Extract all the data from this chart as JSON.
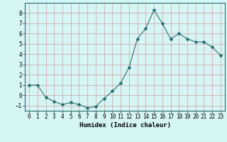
{
  "x": [
    0,
    1,
    2,
    3,
    4,
    5,
    6,
    7,
    8,
    9,
    10,
    11,
    12,
    13,
    14,
    15,
    16,
    17,
    18,
    19,
    20,
    21,
    22,
    23
  ],
  "y": [
    1.0,
    1.0,
    -0.2,
    -0.6,
    -0.9,
    -0.7,
    -0.9,
    -1.2,
    -1.1,
    -0.3,
    0.4,
    1.2,
    2.7,
    5.5,
    6.5,
    8.3,
    7.0,
    5.5,
    6.0,
    5.5,
    5.2,
    5.2,
    4.7,
    3.9
  ],
  "line_color": "#2d7070",
  "marker": "*",
  "marker_size": 3,
  "bg_color": "#d6f5f5",
  "grid_major_color": "#c8c8c8",
  "grid_minor_color": "#dce8e8",
  "xlabel": "Humidex (Indice chaleur)",
  "xlim": [
    -0.5,
    23.5
  ],
  "ylim": [
    -1.5,
    9.0
  ],
  "yticks": [
    -1,
    0,
    1,
    2,
    3,
    4,
    5,
    6,
    7,
    8
  ],
  "xticks": [
    0,
    1,
    2,
    3,
    4,
    5,
    6,
    7,
    8,
    9,
    10,
    11,
    12,
    13,
    14,
    15,
    16,
    17,
    18,
    19,
    20,
    21,
    22,
    23
  ],
  "tick_fontsize": 5.5,
  "xlabel_fontsize": 6.5,
  "xlabel_fontweight": "bold"
}
